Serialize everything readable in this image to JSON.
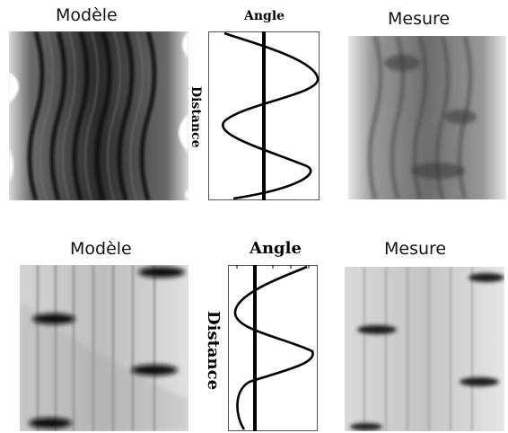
{
  "row_top": {
    "model_title": "Modèle",
    "angle_title": "Angle",
    "distance_label": "Distance",
    "measure_title": "Mesure"
  },
  "row_bottom": {
    "model_title": "Modèle",
    "angle_title": "Angle",
    "distance_label": "Distance",
    "measure_title": "Mesure"
  },
  "colors": {
    "background": "#ffffff",
    "ink": "#000000"
  }
}
